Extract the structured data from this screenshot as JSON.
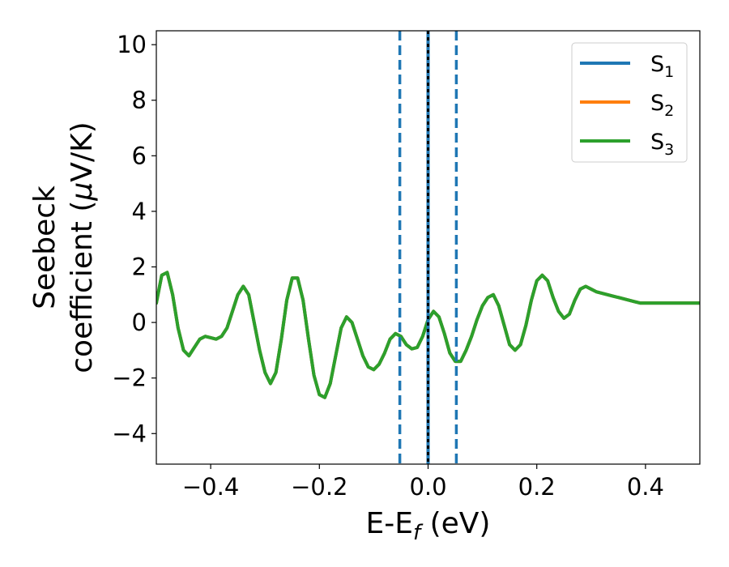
{
  "chart_data": {
    "type": "line",
    "xlabel": "E-E",
    "xlabel_sub": "f",
    "xlabel_unit": " (eV)",
    "ylabel_line1": "Seebeck",
    "ylabel_line2_pre": "coefficient  (",
    "ylabel_line2_mu": "μ",
    "ylabel_line2_post": "V/K)",
    "xlim": [
      -0.5,
      0.5
    ],
    "ylim": [
      -5.1,
      10.5
    ],
    "xticks": [
      -0.4,
      -0.2,
      0.0,
      0.2,
      0.4
    ],
    "xtick_labels": [
      "−0.4",
      "−0.2",
      "0.0",
      "0.2",
      "0.4"
    ],
    "yticks": [
      -4,
      -2,
      0,
      2,
      4,
      6,
      8,
      10
    ],
    "ytick_labels": [
      "−4",
      "−2",
      "0",
      "2",
      "4",
      "6",
      "8",
      "10"
    ],
    "grid": false,
    "legend_position": "top-right",
    "series": [
      {
        "name": "S",
        "sub": "1",
        "color": "#1f77b4",
        "y_ref": "S3"
      },
      {
        "name": "S",
        "sub": "2",
        "color": "#ff7f0e",
        "y_ref": "S3"
      },
      {
        "name": "S",
        "sub": "3",
        "color": "#2ca02c",
        "x": [
          -0.5,
          -0.49,
          -0.48,
          -0.47,
          -0.46,
          -0.45,
          -0.44,
          -0.43,
          -0.42,
          -0.41,
          -0.4,
          -0.39,
          -0.38,
          -0.37,
          -0.36,
          -0.35,
          -0.34,
          -0.33,
          -0.32,
          -0.31,
          -0.3,
          -0.29,
          -0.28,
          -0.27,
          -0.26,
          -0.25,
          -0.24,
          -0.23,
          -0.22,
          -0.21,
          -0.2,
          -0.19,
          -0.18,
          -0.17,
          -0.16,
          -0.15,
          -0.14,
          -0.13,
          -0.12,
          -0.11,
          -0.1,
          -0.09,
          -0.08,
          -0.07,
          -0.06,
          -0.05,
          -0.04,
          -0.03,
          -0.02,
          -0.01,
          0.0,
          0.01,
          0.02,
          0.03,
          0.04,
          0.05,
          0.06,
          0.07,
          0.08,
          0.09,
          0.1,
          0.11,
          0.12,
          0.13,
          0.14,
          0.15,
          0.16,
          0.17,
          0.18,
          0.19,
          0.2,
          0.21,
          0.22,
          0.23,
          0.24,
          0.25,
          0.26,
          0.27,
          0.28,
          0.29,
          0.3,
          0.31,
          0.32,
          0.33,
          0.34,
          0.35,
          0.36,
          0.37,
          0.38,
          0.39,
          0.4,
          0.41,
          0.42,
          0.43,
          0.44,
          0.45,
          0.46,
          0.47,
          0.48,
          0.49,
          0.5
        ],
        "y": [
          0.7,
          1.7,
          1.8,
          1.0,
          -0.2,
          -1.0,
          -1.2,
          -0.9,
          -0.6,
          -0.5,
          -0.55,
          -0.6,
          -0.5,
          -0.2,
          0.4,
          1.0,
          1.3,
          1.0,
          0.0,
          -1.0,
          -1.8,
          -2.2,
          -1.8,
          -0.6,
          0.8,
          1.6,
          1.6,
          0.8,
          -0.6,
          -1.9,
          -2.6,
          -2.7,
          -2.2,
          -1.2,
          -0.2,
          0.2,
          0.0,
          -0.6,
          -1.2,
          -1.6,
          -1.7,
          -1.5,
          -1.1,
          -0.6,
          -0.4,
          -0.5,
          -0.8,
          -0.95,
          -0.9,
          -0.5,
          0.1,
          0.4,
          0.2,
          -0.4,
          -1.1,
          -1.4,
          -1.4,
          -1.0,
          -0.5,
          0.1,
          0.6,
          0.9,
          1.0,
          0.6,
          -0.1,
          -0.8,
          -1.0,
          -0.8,
          -0.1,
          0.8,
          1.5,
          1.7,
          1.5,
          0.9,
          0.4,
          0.15,
          0.3,
          0.8,
          1.2,
          1.3,
          1.2,
          1.1,
          1.05,
          1.0,
          0.95,
          0.9,
          0.85,
          0.8,
          0.75,
          0.7,
          0.7,
          0.7,
          0.7,
          0.7,
          0.7,
          0.7,
          0.7,
          0.7,
          0.7,
          0.7,
          0.7
        ]
      }
    ],
    "vlines": [
      {
        "x": -0.052,
        "style": "dashed",
        "color": "#1f77b4"
      },
      {
        "x": 0.0,
        "style": "solid",
        "color": "#1f77b4"
      },
      {
        "x": 0.0,
        "style": "dotted",
        "color": "#000000"
      },
      {
        "x": 0.052,
        "style": "dashed",
        "color": "#1f77b4"
      }
    ]
  }
}
